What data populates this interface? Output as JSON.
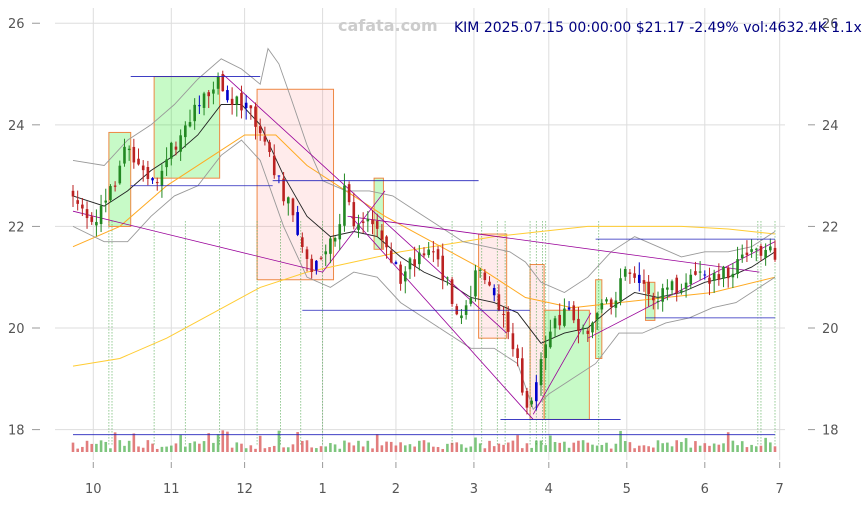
{
  "chart_data": {
    "type": "candlestick",
    "watermark": "cafata.com",
    "title": "KIM 2025.07.15 00:00:00 $21.17 -2.49% vol:4632.4K 1.1x",
    "ylim": [
      17.5,
      26.3
    ],
    "y_ticks": [
      18,
      20,
      22,
      24,
      26
    ],
    "y_tick_labels": [
      "18",
      "20",
      "22",
      "24",
      "26"
    ],
    "x_tick_labels": [
      "10",
      "11",
      "12",
      "1",
      "2",
      "3",
      "4",
      "5",
      "6",
      "7"
    ],
    "x_tick_days": [
      13,
      63,
      110,
      160,
      207,
      257,
      305,
      355,
      405,
      453
    ],
    "price_path": [
      [
        0,
        22.7
      ],
      [
        5,
        22.3
      ],
      [
        12,
        22.05
      ],
      [
        20,
        22.3
      ],
      [
        27,
        22.9
      ],
      [
        33,
        23.6
      ],
      [
        38,
        23.4
      ],
      [
        45,
        23.0
      ],
      [
        52,
        22.9
      ],
      [
        58,
        23.2
      ],
      [
        65,
        23.6
      ],
      [
        72,
        24.0
      ],
      [
        80,
        24.3
      ],
      [
        88,
        24.75
      ],
      [
        93,
        24.9
      ],
      [
        97,
        24.65
      ],
      [
        103,
        24.4
      ],
      [
        110,
        24.45
      ],
      [
        116,
        24.2
      ],
      [
        120,
        23.9
      ],
      [
        128,
        23.2
      ],
      [
        134,
        22.7
      ],
      [
        140,
        22.5
      ],
      [
        147,
        21.6
      ],
      [
        153,
        21.2
      ],
      [
        158,
        21.5
      ],
      [
        164,
        21.7
      ],
      [
        170,
        22.0
      ],
      [
        174,
        22.7
      ],
      [
        178,
        22.2
      ],
      [
        184,
        21.9
      ],
      [
        190,
        22.1
      ],
      [
        196,
        21.8
      ],
      [
        203,
        21.5
      ],
      [
        210,
        21.0
      ],
      [
        216,
        21.4
      ],
      [
        223,
        21.3
      ],
      [
        229,
        21.6
      ],
      [
        236,
        21.1
      ],
      [
        242,
        20.7
      ],
      [
        247,
        20.3
      ],
      [
        254,
        20.5
      ],
      [
        260,
        21.2
      ],
      [
        266,
        21.0
      ],
      [
        272,
        20.5
      ],
      [
        279,
        19.9
      ],
      [
        285,
        19.3
      ],
      [
        291,
        18.3
      ],
      [
        296,
        18.9
      ],
      [
        302,
        19.6
      ],
      [
        308,
        20.0
      ],
      [
        313,
        20.2
      ],
      [
        318,
        20.3
      ],
      [
        322,
        20.1
      ],
      [
        328,
        19.8
      ],
      [
        334,
        20.3
      ],
      [
        340,
        20.7
      ],
      [
        346,
        20.5
      ],
      [
        352,
        21.0
      ],
      [
        358,
        21.2
      ],
      [
        364,
        20.8
      ],
      [
        370,
        20.5
      ],
      [
        376,
        20.6
      ],
      [
        382,
        20.9
      ],
      [
        388,
        20.8
      ],
      [
        394,
        20.9
      ],
      [
        400,
        21.1
      ],
      [
        406,
        20.9
      ],
      [
        412,
        21.0
      ],
      [
        418,
        21.1
      ],
      [
        424,
        21.2
      ],
      [
        430,
        21.3
      ],
      [
        436,
        21.4
      ],
      [
        442,
        21.6
      ],
      [
        446,
        21.7
      ],
      [
        450,
        21.3
      ]
    ],
    "ma_short_path": [
      [
        0,
        22.6
      ],
      [
        20,
        22.4
      ],
      [
        35,
        22.7
      ],
      [
        50,
        23.1
      ],
      [
        65,
        23.4
      ],
      [
        80,
        23.8
      ],
      [
        95,
        24.4
      ],
      [
        108,
        24.4
      ],
      [
        120,
        24.0
      ],
      [
        135,
        23.0
      ],
      [
        150,
        22.2
      ],
      [
        165,
        21.8
      ],
      [
        180,
        21.9
      ],
      [
        195,
        21.8
      ],
      [
        210,
        21.4
      ],
      [
        225,
        21.1
      ],
      [
        240,
        20.9
      ],
      [
        255,
        20.6
      ],
      [
        270,
        20.5
      ],
      [
        285,
        20.3
      ],
      [
        300,
        19.7
      ],
      [
        315,
        19.9
      ],
      [
        330,
        20.0
      ],
      [
        345,
        20.4
      ],
      [
        360,
        20.7
      ],
      [
        375,
        20.6
      ],
      [
        390,
        20.7
      ],
      [
        405,
        20.9
      ],
      [
        420,
        21.0
      ],
      [
        435,
        21.2
      ],
      [
        450,
        21.5
      ]
    ],
    "bb_upper_path": [
      [
        0,
        23.3
      ],
      [
        20,
        23.2
      ],
      [
        35,
        23.7
      ],
      [
        50,
        24.0
      ],
      [
        65,
        24.4
      ],
      [
        80,
        24.9
      ],
      [
        95,
        25.3
      ],
      [
        108,
        25.1
      ],
      [
        120,
        24.8
      ],
      [
        125,
        25.5
      ],
      [
        132,
        25.2
      ],
      [
        140,
        24.5
      ],
      [
        150,
        23.6
      ],
      [
        160,
        22.9
      ],
      [
        175,
        22.7
      ],
      [
        190,
        22.7
      ],
      [
        205,
        22.6
      ],
      [
        220,
        22.3
      ],
      [
        235,
        22.0
      ],
      [
        250,
        21.7
      ],
      [
        265,
        21.6
      ],
      [
        280,
        21.5
      ],
      [
        290,
        21.3
      ],
      [
        300,
        20.9
      ],
      [
        315,
        20.7
      ],
      [
        330,
        21.0
      ],
      [
        345,
        21.5
      ],
      [
        360,
        21.8
      ],
      [
        375,
        21.6
      ],
      [
        390,
        21.4
      ],
      [
        405,
        21.5
      ],
      [
        420,
        21.5
      ],
      [
        435,
        21.6
      ],
      [
        450,
        21.9
      ]
    ],
    "bb_lower_path": [
      [
        0,
        22.0
      ],
      [
        20,
        21.7
      ],
      [
        35,
        21.7
      ],
      [
        50,
        22.2
      ],
      [
        65,
        22.6
      ],
      [
        80,
        22.8
      ],
      [
        95,
        23.4
      ],
      [
        108,
        23.7
      ],
      [
        120,
        23.3
      ],
      [
        135,
        22.0
      ],
      [
        150,
        21.0
      ],
      [
        165,
        20.8
      ],
      [
        180,
        21.1
      ],
      [
        195,
        21.0
      ],
      [
        210,
        20.5
      ],
      [
        225,
        20.2
      ],
      [
        240,
        19.9
      ],
      [
        255,
        19.6
      ],
      [
        270,
        19.6
      ],
      [
        285,
        19.3
      ],
      [
        295,
        18.4
      ],
      [
        305,
        18.7
      ],
      [
        320,
        19.0
      ],
      [
        335,
        19.3
      ],
      [
        350,
        19.9
      ],
      [
        365,
        19.9
      ],
      [
        380,
        20.1
      ],
      [
        395,
        20.2
      ],
      [
        410,
        20.4
      ],
      [
        425,
        20.5
      ],
      [
        440,
        20.8
      ],
      [
        450,
        21.0
      ]
    ],
    "ma_mid_path": [
      [
        0,
        21.6
      ],
      [
        30,
        22.0
      ],
      [
        60,
        22.8
      ],
      [
        90,
        23.4
      ],
      [
        110,
        23.8
      ],
      [
        130,
        23.8
      ],
      [
        150,
        23.2
      ],
      [
        175,
        22.7
      ],
      [
        200,
        22.2
      ],
      [
        230,
        21.7
      ],
      [
        260,
        21.2
      ],
      [
        290,
        20.6
      ],
      [
        320,
        20.4
      ],
      [
        350,
        20.5
      ],
      [
        380,
        20.6
      ],
      [
        410,
        20.7
      ],
      [
        450,
        21.0
      ]
    ],
    "ma_long_path": [
      [
        0,
        19.25
      ],
      [
        30,
        19.4
      ],
      [
        60,
        19.8
      ],
      [
        90,
        20.3
      ],
      [
        120,
        20.8
      ],
      [
        150,
        21.1
      ],
      [
        180,
        21.3
      ],
      [
        210,
        21.5
      ],
      [
        240,
        21.65
      ],
      [
        270,
        21.8
      ],
      [
        300,
        21.9
      ],
      [
        330,
        22.0
      ],
      [
        360,
        22.0
      ],
      [
        390,
        22.0
      ],
      [
        420,
        21.95
      ],
      [
        450,
        21.85
      ]
    ],
    "boxes": [
      {
        "x0": 23,
        "x1": 37,
        "low": 22.0,
        "high": 23.85,
        "color": "green"
      },
      {
        "x0": 52,
        "x1": 94,
        "low": 22.95,
        "high": 24.95,
        "color": "green"
      },
      {
        "x0": 118,
        "x1": 167,
        "low": 20.95,
        "high": 24.7,
        "color": "red"
      },
      {
        "x0": 193,
        "x1": 199,
        "low": 21.55,
        "high": 22.95,
        "color": "green"
      },
      {
        "x0": 260,
        "x1": 278,
        "low": 19.8,
        "high": 21.85,
        "color": "red"
      },
      {
        "x0": 293,
        "x1": 302,
        "low": 18.2,
        "high": 21.25,
        "color": "red"
      },
      {
        "x0": 302,
        "x1": 331,
        "low": 18.2,
        "high": 20.35,
        "color": "green"
      },
      {
        "x0": 335,
        "x1": 339,
        "low": 19.4,
        "high": 20.95,
        "color": "green"
      },
      {
        "x0": 367,
        "x1": 373,
        "low": 20.15,
        "high": 20.9,
        "color": "green"
      }
    ],
    "h_lines": [
      {
        "x0": 37,
        "x1": 120,
        "y": 24.95
      },
      {
        "x0": 37,
        "x1": 128,
        "y": 22.8
      },
      {
        "x0": 128,
        "x1": 260,
        "y": 22.9
      },
      {
        "x0": 147,
        "x1": 293,
        "y": 20.35
      },
      {
        "x0": 274,
        "x1": 351,
        "y": 18.2
      },
      {
        "x0": 335,
        "x1": 450,
        "y": 21.75
      },
      {
        "x0": 367,
        "x1": 450,
        "y": 20.2
      },
      {
        "x0": 0,
        "x1": 450,
        "y": 17.9
      }
    ],
    "trend_lines": [
      {
        "x0": 0,
        "y0": 22.3,
        "x1": 160,
        "y1": 21.1
      },
      {
        "x0": 96,
        "y0": 25.0,
        "x1": 278,
        "y1": 19.9
      },
      {
        "x0": 178,
        "y0": 22.2,
        "x1": 295,
        "y1": 18.2
      },
      {
        "x0": 295,
        "y0": 18.3,
        "x1": 332,
        "y1": 20.3
      },
      {
        "x0": 330,
        "y0": 19.8,
        "x1": 450,
        "y1": 21.7
      },
      {
        "x0": 176,
        "y0": 22.2,
        "x1": 440,
        "y1": 21.1
      },
      {
        "x0": 160,
        "y0": 21.1,
        "x1": 200,
        "y1": 22.7
      }
    ],
    "markers": [
      23,
      25,
      52,
      72,
      94,
      118,
      133,
      146,
      160,
      243,
      262,
      272,
      277,
      293,
      297,
      301,
      303,
      337,
      439,
      441,
      450
    ]
  }
}
